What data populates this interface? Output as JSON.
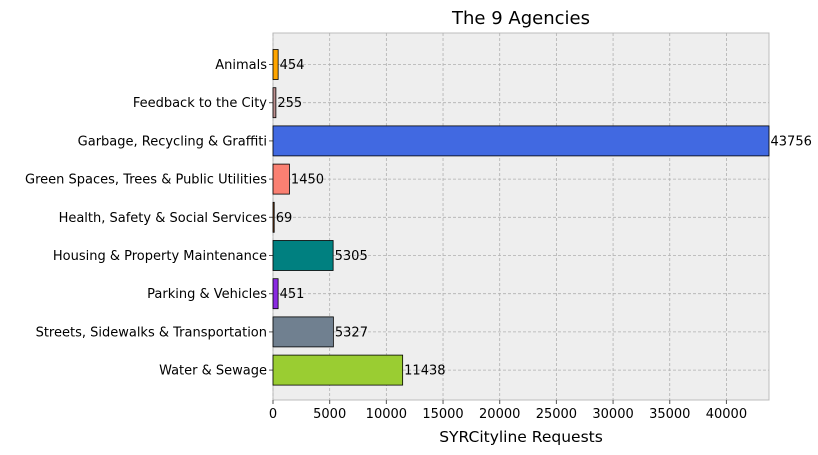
{
  "chart_data": {
    "type": "bar",
    "orientation": "horizontal",
    "title": "The 9 Agencies",
    "xlabel": "SYRCityline Requests",
    "ylabel": "",
    "categories": [
      "Animals",
      "Feedback to the City",
      "Garbage, Recycling & Graffiti",
      "Green Spaces, Trees & Public Utilities",
      "Health, Safety & Social Services",
      "Housing & Property Maintenance",
      "Parking & Vehicles",
      "Streets, Sidewalks & Transportation",
      "Water & Sewage"
    ],
    "values": [
      454,
      255,
      43756,
      1450,
      69,
      5305,
      451,
      5327,
      11438
    ],
    "value_labels": [
      "454",
      "255",
      "43756",
      "1450",
      "69",
      "5305",
      "451",
      "5327",
      "11438"
    ],
    "colors": [
      "#ffa500",
      "#bc8f8f",
      "#4169e1",
      "#fa8072",
      "#8b4513",
      "#008080",
      "#8a2be2",
      "#708090",
      "#9acd32"
    ],
    "xlim": [
      0,
      43756
    ],
    "xticks": [
      0,
      5000,
      10000,
      15000,
      20000,
      25000,
      30000,
      35000,
      40000
    ],
    "xtick_labels": [
      "0",
      "5000",
      "10000",
      "15000",
      "20000",
      "25000",
      "30000",
      "35000",
      "40000"
    ],
    "grid": true,
    "background": "#eeeeee"
  }
}
